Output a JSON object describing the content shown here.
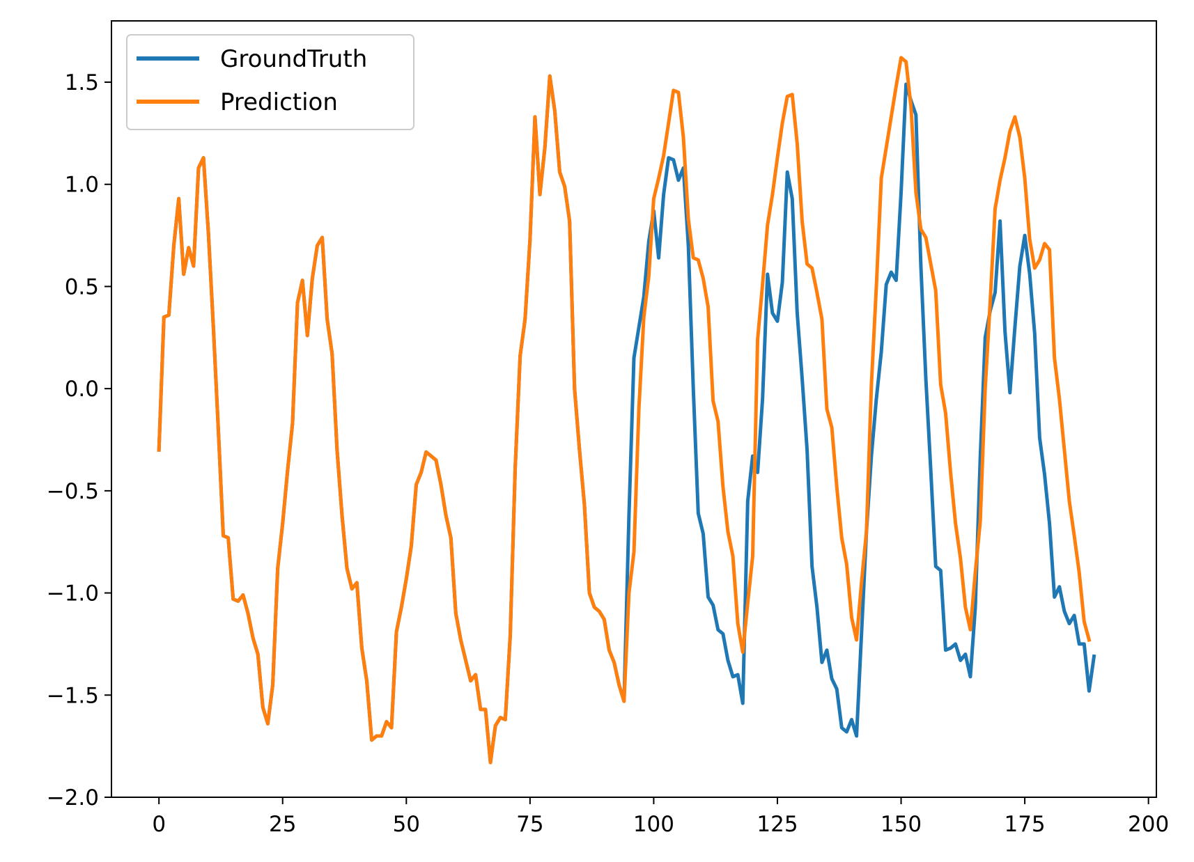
{
  "chart_data": {
    "type": "line",
    "title": "",
    "xlabel": "",
    "ylabel": "",
    "xlim": [
      -9.6,
      201.6
    ],
    "ylim": [
      -2.0,
      1.8
    ],
    "xticks": [
      0,
      25,
      50,
      75,
      100,
      125,
      150,
      175,
      200
    ],
    "xtick_labels": [
      "0",
      "25",
      "50",
      "75",
      "100",
      "125",
      "150",
      "175",
      "200"
    ],
    "yticks": [
      -2.0,
      -1.5,
      -1.0,
      -0.5,
      0.0,
      0.5,
      1.0,
      1.5
    ],
    "ytick_labels": [
      "−2.0",
      "−1.5",
      "−1.0",
      "−0.5",
      "0.0",
      "0.5",
      "1.0",
      "1.5"
    ],
    "grid": false,
    "legend_position": "top-left",
    "series": [
      {
        "name": "GroundTruth",
        "color": "#1f77b4",
        "values": [
          -0.3,
          0.35,
          0.36,
          0.7,
          0.93,
          0.56,
          0.69,
          0.6,
          1.08,
          1.13,
          0.76,
          0.3,
          -0.2,
          -0.72,
          -0.73,
          -1.03,
          -1.04,
          -1.01,
          -1.1,
          -1.22,
          -1.3,
          -1.56,
          -1.64,
          -1.45,
          -0.88,
          -0.66,
          -0.4,
          -0.17,
          0.42,
          0.53,
          0.26,
          0.54,
          0.7,
          0.74,
          0.34,
          0.17,
          -0.3,
          -0.62,
          -0.88,
          -0.98,
          -0.95,
          -1.27,
          -1.43,
          -1.72,
          -1.7,
          -1.7,
          -1.63,
          -1.66,
          -1.19,
          -1.07,
          -0.93,
          -0.77,
          -0.47,
          -0.41,
          -0.31,
          -0.33,
          -0.35,
          -0.47,
          -0.62,
          -0.73,
          -1.1,
          -1.23,
          -1.33,
          -1.43,
          -1.4,
          -1.57,
          -1.57,
          -1.83,
          -1.65,
          -1.61,
          -1.62,
          -1.21,
          -0.39,
          0.16,
          0.34,
          0.73,
          1.33,
          0.95,
          1.18,
          1.53,
          1.36,
          1.06,
          0.99,
          0.82,
          0.0,
          -0.3,
          -0.57,
          -1.0,
          -1.07,
          -1.09,
          -1.13,
          -1.28,
          -1.34,
          -1.45,
          -1.53,
          -0.62,
          0.15,
          0.3,
          0.45,
          0.72,
          0.87,
          0.64,
          0.95,
          1.13,
          1.12,
          1.02,
          1.08,
          0.7,
          0.0,
          -0.61,
          -0.71,
          -1.02,
          -1.06,
          -1.18,
          -1.2,
          -1.33,
          -1.41,
          -1.4,
          -1.54,
          -0.55,
          -0.33,
          -0.41,
          -0.05,
          0.56,
          0.37,
          0.33,
          0.52,
          1.06,
          0.93,
          0.37,
          0.05,
          -0.3,
          -0.87,
          -1.07,
          -1.34,
          -1.28,
          -1.42,
          -1.47,
          -1.66,
          -1.68,
          -1.62,
          -1.7,
          -1.2,
          -0.7,
          -0.33,
          -0.05,
          0.18,
          0.51,
          0.57,
          0.53,
          0.96,
          1.49,
          1.41,
          1.34,
          0.6,
          0.05,
          -0.4,
          -0.87,
          -0.89,
          -1.28,
          -1.27,
          -1.25,
          -1.33,
          -1.3,
          -1.41,
          -1.07,
          -0.34,
          0.25,
          0.38,
          0.47,
          0.82,
          0.28,
          -0.02,
          0.3,
          0.6,
          0.75,
          0.56,
          0.27,
          -0.24,
          -0.42,
          -0.66,
          -1.02,
          -0.97,
          -1.09,
          -1.15,
          -1.11,
          -1.25,
          -1.25,
          -1.48,
          -1.31
        ]
      },
      {
        "name": "Prediction",
        "color": "#ff7f0e",
        "values": [
          -0.3,
          0.35,
          0.36,
          0.7,
          0.93,
          0.56,
          0.69,
          0.6,
          1.08,
          1.13,
          0.76,
          0.3,
          -0.2,
          -0.72,
          -0.73,
          -1.03,
          -1.04,
          -1.01,
          -1.1,
          -1.22,
          -1.3,
          -1.56,
          -1.64,
          -1.45,
          -0.88,
          -0.66,
          -0.4,
          -0.17,
          0.42,
          0.53,
          0.26,
          0.54,
          0.7,
          0.74,
          0.34,
          0.17,
          -0.3,
          -0.62,
          -0.88,
          -0.98,
          -0.95,
          -1.27,
          -1.43,
          -1.72,
          -1.7,
          -1.7,
          -1.63,
          -1.66,
          -1.19,
          -1.07,
          -0.93,
          -0.77,
          -0.47,
          -0.41,
          -0.31,
          -0.33,
          -0.35,
          -0.47,
          -0.62,
          -0.73,
          -1.1,
          -1.23,
          -1.33,
          -1.43,
          -1.4,
          -1.57,
          -1.57,
          -1.83,
          -1.65,
          -1.61,
          -1.62,
          -1.21,
          -0.39,
          0.16,
          0.34,
          0.73,
          1.33,
          0.95,
          1.18,
          1.53,
          1.36,
          1.06,
          0.99,
          0.82,
          0.0,
          -0.3,
          -0.57,
          -1.0,
          -1.07,
          -1.09,
          -1.13,
          -1.28,
          -1.34,
          -1.45,
          -1.53,
          -1.0,
          -0.8,
          -0.1,
          0.35,
          0.55,
          0.93,
          1.03,
          1.14,
          1.3,
          1.46,
          1.45,
          1.23,
          0.83,
          0.64,
          0.63,
          0.54,
          0.4,
          -0.06,
          -0.16,
          -0.48,
          -0.7,
          -0.82,
          -1.15,
          -1.29,
          -1.05,
          -0.82,
          0.24,
          0.51,
          0.8,
          0.95,
          1.13,
          1.3,
          1.43,
          1.44,
          1.2,
          0.82,
          0.61,
          0.59,
          0.47,
          0.34,
          -0.1,
          -0.19,
          -0.48,
          -0.73,
          -0.86,
          -1.12,
          -1.23,
          -0.95,
          -0.7,
          0.02,
          0.5,
          1.03,
          1.18,
          1.33,
          1.48,
          1.62,
          1.6,
          1.38,
          0.96,
          0.78,
          0.74,
          0.61,
          0.48,
          0.02,
          -0.12,
          -0.41,
          -0.66,
          -0.83,
          -1.07,
          -1.18,
          -0.9,
          -0.65,
          0.0,
          0.42,
          0.88,
          1.02,
          1.13,
          1.26,
          1.33,
          1.23,
          1.03,
          0.73,
          0.59,
          0.63,
          0.71,
          0.68,
          0.15,
          -0.05,
          -0.3,
          -0.55,
          -0.72,
          -0.9,
          -1.14,
          -1.23
        ]
      }
    ]
  }
}
